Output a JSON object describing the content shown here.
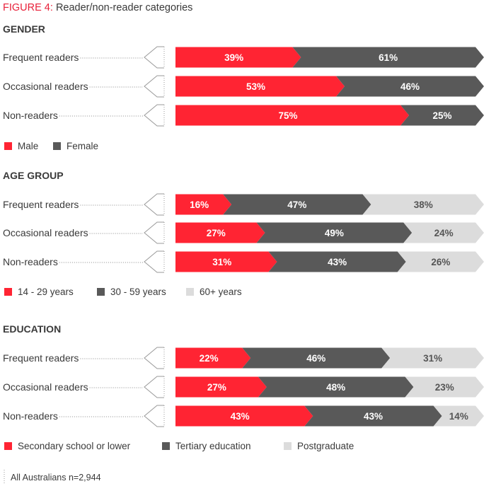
{
  "figure": {
    "number": "FIGURE 4:",
    "title": "Reader/non-reader categories"
  },
  "colors": {
    "red": "#ff2433",
    "dark": "#595959",
    "light": "#dcdcdc"
  },
  "chart_data": [
    {
      "type": "bar",
      "orientation": "horizontal",
      "stacked": true,
      "title": "GENDER",
      "categories": [
        "Frequent readers",
        "Occasional readers",
        "Non-readers"
      ],
      "series": [
        {
          "name": "Male",
          "color": "#ff2433",
          "values": [
            39,
            53,
            75
          ]
        },
        {
          "name": "Female",
          "color": "#595959",
          "values": [
            61,
            46,
            25
          ]
        }
      ],
      "value_suffix": "%"
    },
    {
      "type": "bar",
      "orientation": "horizontal",
      "stacked": true,
      "title": "AGE GROUP",
      "categories": [
        "Frequent readers",
        "Occasional readers",
        "Non-readers"
      ],
      "series": [
        {
          "name": "14 - 29 years",
          "color": "#ff2433",
          "values": [
            16,
            27,
            31
          ]
        },
        {
          "name": "30 - 59 years",
          "color": "#595959",
          "values": [
            47,
            49,
            43
          ]
        },
        {
          "name": "60+ years",
          "color": "#dcdcdc",
          "values": [
            38,
            24,
            26
          ]
        }
      ],
      "value_suffix": "%"
    },
    {
      "type": "bar",
      "orientation": "horizontal",
      "stacked": true,
      "title": "EDUCATION",
      "categories": [
        "Frequent readers",
        "Occasional readers",
        "Non-readers"
      ],
      "series": [
        {
          "name": "Secondary school or lower",
          "color": "#ff2433",
          "values": [
            22,
            27,
            43
          ]
        },
        {
          "name": "Tertiary education",
          "color": "#595959",
          "values": [
            46,
            48,
            43
          ]
        },
        {
          "name": "Postgraduate",
          "color": "#dcdcdc",
          "values": [
            31,
            23,
            14
          ]
        }
      ],
      "value_suffix": "%"
    }
  ],
  "note": "All Australians n=2,944"
}
